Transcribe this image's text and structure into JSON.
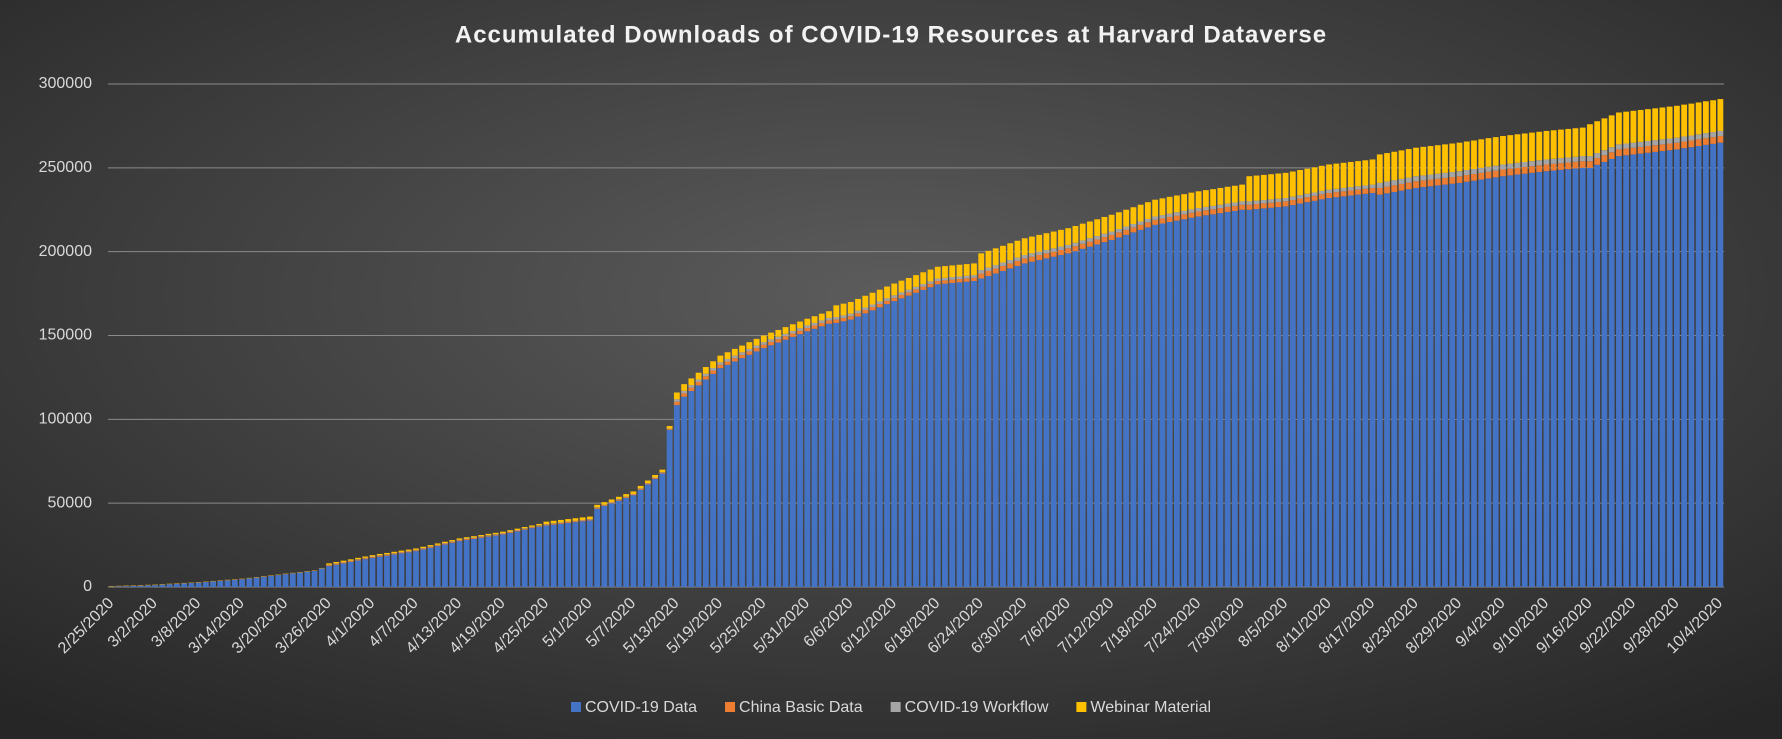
{
  "chart_data": {
    "type": "stacked_bar",
    "title": "Accumulated Downloads of COVID-19 Resources at Harvard Dataverse",
    "categories": [
      "2/25/2020",
      null,
      null,
      null,
      null,
      null,
      "3/2/2020",
      null,
      null,
      null,
      null,
      null,
      "3/8/2020",
      null,
      null,
      null,
      null,
      null,
      "3/14/2020",
      null,
      null,
      null,
      null,
      null,
      "3/20/2020",
      null,
      null,
      null,
      null,
      null,
      "3/26/2020",
      null,
      null,
      null,
      null,
      null,
      "4/1/2020",
      null,
      null,
      null,
      null,
      null,
      "4/7/2020",
      null,
      null,
      null,
      null,
      null,
      "4/13/2020",
      null,
      null,
      null,
      null,
      null,
      "4/19/2020",
      null,
      null,
      null,
      null,
      null,
      "4/25/2020",
      null,
      null,
      null,
      null,
      null,
      "5/1/2020",
      null,
      null,
      null,
      null,
      null,
      "5/7/2020",
      null,
      null,
      null,
      null,
      null,
      "5/13/2020",
      null,
      null,
      null,
      null,
      null,
      "5/19/2020",
      null,
      null,
      null,
      null,
      null,
      "5/25/2020",
      null,
      null,
      null,
      null,
      null,
      "5/31/2020",
      null,
      null,
      null,
      null,
      null,
      "6/6/2020",
      null,
      null,
      null,
      null,
      null,
      "6/12/2020",
      null,
      null,
      null,
      null,
      null,
      "6/18/2020",
      null,
      null,
      null,
      null,
      null,
      "6/24/2020",
      null,
      null,
      null,
      null,
      null,
      "6/30/2020",
      null,
      null,
      null,
      null,
      null,
      "7/6/2020",
      null,
      null,
      null,
      null,
      null,
      "7/12/2020",
      null,
      null,
      null,
      null,
      null,
      "7/18/2020",
      null,
      null,
      null,
      null,
      null,
      "7/24/2020",
      null,
      null,
      null,
      null,
      null,
      "7/30/2020",
      null,
      null,
      null,
      null,
      null,
      "8/5/2020",
      null,
      null,
      null,
      null,
      null,
      "8/11/2020",
      null,
      null,
      null,
      null,
      null,
      "8/17/2020",
      null,
      null,
      null,
      null,
      null,
      "8/23/2020",
      null,
      null,
      null,
      null,
      null,
      "8/29/2020",
      null,
      null,
      null,
      null,
      null,
      "9/4/2020",
      null,
      null,
      null,
      null,
      null,
      "9/10/2020",
      null,
      null,
      null,
      null,
      null,
      "9/16/2020",
      null,
      null,
      null,
      null,
      null,
      "9/22/2020",
      null,
      null,
      null,
      null,
      null,
      "9/28/2020",
      null,
      null,
      null,
      null,
      null,
      "10/4/2020"
    ],
    "series": [
      {
        "name": "COVID-19 Data",
        "color": "#4472c4",
        "values": [
          200,
          350,
          500,
          650,
          800,
          950,
          1100,
          1350,
          1600,
          1850,
          2100,
          2350,
          2600,
          2930,
          3270,
          3600,
          3930,
          4270,
          4600,
          5100,
          5600,
          6100,
          6600,
          7100,
          7600,
          8100,
          8600,
          9100,
          9600,
          11000,
          12500,
          13300,
          14100,
          14900,
          15800,
          16600,
          17400,
          18100,
          18700,
          19400,
          20100,
          20700,
          21400,
          22400,
          23400,
          24400,
          25400,
          26400,
          27400,
          28100,
          28700,
          29400,
          30100,
          30700,
          31400,
          32300,
          33200,
          34200,
          35100,
          36000,
          36700,
          37200,
          37700,
          38200,
          38700,
          39200,
          39700,
          46700,
          48300,
          49900,
          51500,
          53100,
          54700,
          58000,
          61200,
          64500,
          67700,
          93700,
          108500,
          113500,
          116900,
          120300,
          123700,
          127100,
          130500,
          132500,
          134500,
          136500,
          138500,
          140500,
          142500,
          144200,
          145800,
          147500,
          149200,
          150800,
          152500,
          154000,
          155500,
          157000,
          157500,
          158500,
          159500,
          161300,
          163200,
          165000,
          166800,
          168700,
          170500,
          172200,
          173800,
          175500,
          177200,
          178800,
          180500,
          180900,
          181300,
          181700,
          182100,
          182500,
          184000,
          185500,
          187000,
          188500,
          190000,
          191500,
          193000,
          194000,
          195000,
          196000,
          197000,
          198000,
          199000,
          200300,
          201700,
          203000,
          204300,
          205700,
          207000,
          208500,
          210000,
          211500,
          213000,
          214500,
          216000,
          216800,
          217700,
          218500,
          219300,
          220200,
          221000,
          221700,
          222300,
          223000,
          223700,
          224300,
          225000,
          225000,
          225400,
          225800,
          226200,
          226600,
          227000,
          227800,
          228700,
          229500,
          230300,
          231200,
          232000,
          232500,
          233000,
          233500,
          234000,
          234500,
          235000,
          234000,
          234800,
          235600,
          236400,
          237200,
          238000,
          238500,
          239000,
          239500,
          240000,
          240500,
          241000,
          241700,
          242300,
          243000,
          243700,
          244300,
          245000,
          245500,
          246000,
          246500,
          247000,
          247500,
          248000,
          248400,
          248800,
          249200,
          249600,
          250000,
          250000,
          251800,
          253500,
          255300,
          257000,
          257500,
          258000,
          258500,
          259000,
          259500,
          260000,
          260500,
          261000,
          261700,
          262300,
          263000,
          263700,
          264300,
          265000
        ]
      },
      {
        "name": "China Basic Data",
        "color": "#ed7d31",
        "values": [
          100,
          100,
          100,
          100,
          100,
          100,
          100,
          100,
          100,
          100,
          100,
          100,
          100,
          100,
          100,
          100,
          100,
          100,
          100,
          100,
          100,
          100,
          100,
          100,
          100,
          100,
          100,
          100,
          100,
          100,
          500,
          500,
          500,
          500,
          500,
          500,
          500,
          500,
          500,
          500,
          500,
          500,
          500,
          500,
          500,
          500,
          500,
          500,
          500,
          500,
          500,
          500,
          500,
          500,
          500,
          500,
          500,
          500,
          500,
          500,
          500,
          500,
          500,
          500,
          500,
          500,
          500,
          500,
          500,
          500,
          500,
          500,
          500,
          500,
          500,
          500,
          500,
          500,
          2000,
          2000,
          2000,
          2000,
          2000,
          2000,
          2000,
          2000,
          2000,
          2000,
          2000,
          2000,
          2000,
          2000,
          2000,
          2000,
          2000,
          2000,
          2000,
          2000,
          2000,
          2000,
          2000,
          2000,
          2000,
          2000,
          2000,
          2000,
          2000,
          2000,
          2000,
          2000,
          2000,
          2000,
          2000,
          2000,
          2000,
          2000,
          2000,
          2000,
          2000,
          2000,
          3000,
          3000,
          3000,
          3000,
          3000,
          3000,
          3000,
          3000,
          3000,
          3000,
          3000,
          3000,
          3000,
          3000,
          3000,
          3000,
          3000,
          3000,
          3000,
          3000,
          3000,
          3000,
          3000,
          3000,
          3000,
          3000,
          3000,
          3000,
          3000,
          3000,
          3000,
          3000,
          3000,
          3000,
          3000,
          3000,
          3000,
          3000,
          3000,
          3000,
          3000,
          3000,
          3000,
          3000,
          3000,
          3000,
          3000,
          3000,
          3000,
          3000,
          3000,
          3000,
          3000,
          3000,
          3000,
          4000,
          4000,
          4000,
          4000,
          4000,
          4000,
          4000,
          4000,
          4000,
          4000,
          4000,
          4000,
          4000,
          4000,
          4000,
          4000,
          4000,
          4000,
          4000,
          4000,
          4000,
          4000,
          4000,
          4000,
          4000,
          4000,
          4000,
          4000,
          4000,
          4000,
          4000,
          4000,
          4000,
          4000,
          4000,
          4000,
          4000,
          4000,
          4000,
          4000,
          4000,
          4000,
          4000,
          4000,
          4000,
          4000,
          4000,
          4000
        ]
      },
      {
        "name": "COVID-19 Workflow",
        "color": "#a5a5a5",
        "values": [
          50,
          50,
          50,
          50,
          50,
          50,
          50,
          50,
          50,
          50,
          50,
          50,
          50,
          50,
          50,
          50,
          50,
          50,
          50,
          50,
          50,
          50,
          50,
          50,
          50,
          50,
          50,
          50,
          50,
          50,
          300,
          300,
          300,
          300,
          300,
          300,
          300,
          300,
          300,
          300,
          300,
          300,
          300,
          300,
          300,
          300,
          300,
          300,
          300,
          300,
          300,
          300,
          300,
          300,
          300,
          300,
          300,
          300,
          300,
          300,
          300,
          300,
          300,
          300,
          300,
          300,
          300,
          300,
          300,
          300,
          300,
          300,
          300,
          300,
          300,
          300,
          300,
          300,
          1500,
          1500,
          1500,
          1500,
          1500,
          1500,
          1500,
          1500,
          1500,
          1500,
          1500,
          1500,
          1500,
          1500,
          1500,
          1500,
          1500,
          1500,
          1500,
          1500,
          1500,
          1500,
          1500,
          1500,
          1500,
          1500,
          1500,
          1500,
          1500,
          1500,
          1500,
          1500,
          1500,
          1500,
          1500,
          1500,
          1500,
          1500,
          1500,
          1500,
          1500,
          1500,
          2000,
          2000,
          2000,
          2000,
          2000,
          2000,
          2000,
          2000,
          2000,
          2000,
          2000,
          2000,
          2000,
          2000,
          2000,
          2000,
          2000,
          2000,
          2000,
          2000,
          2000,
          2000,
          2000,
          2000,
          2000,
          2000,
          2000,
          2000,
          2000,
          2000,
          2000,
          2000,
          2000,
          2000,
          2000,
          2000,
          2000,
          2000,
          2000,
          2000,
          2000,
          2000,
          2000,
          2000,
          2000,
          2000,
          2000,
          2000,
          2000,
          2000,
          2000,
          2000,
          2000,
          2000,
          2000,
          3000,
          3000,
          3000,
          3000,
          3000,
          3000,
          3000,
          3000,
          3000,
          3000,
          3000,
          3000,
          3000,
          3000,
          3000,
          3000,
          3000,
          3000,
          3000,
          3000,
          3000,
          3000,
          3000,
          3000,
          3000,
          3000,
          3000,
          3000,
          3000,
          3000,
          3000,
          3000,
          3000,
          3000,
          3000,
          3000,
          3000,
          3000,
          3000,
          3000,
          3000,
          3000,
          3000,
          3000,
          3000,
          3000,
          3000,
          3000
        ]
      },
      {
        "name": "Webinar Material",
        "color": "#ffc000",
        "values": [
          200,
          200,
          200,
          200,
          200,
          200,
          200,
          200,
          200,
          200,
          200,
          200,
          200,
          200,
          200,
          200,
          200,
          200,
          200,
          200,
          200,
          200,
          200,
          200,
          200,
          200,
          200,
          200,
          200,
          200,
          800,
          800,
          800,
          800,
          800,
          800,
          800,
          800,
          800,
          800,
          800,
          800,
          800,
          800,
          800,
          800,
          800,
          800,
          800,
          800,
          800,
          800,
          800,
          800,
          800,
          800,
          800,
          800,
          800,
          800,
          1500,
          1500,
          1500,
          1500,
          1500,
          1500,
          1500,
          1500,
          1500,
          1500,
          1500,
          1500,
          1500,
          1500,
          1500,
          1500,
          1500,
          1500,
          4000,
          4000,
          4000,
          4000,
          4000,
          4000,
          4000,
          4000,
          4000,
          4000,
          4000,
          4000,
          4000,
          4000,
          4000,
          4000,
          4000,
          4000,
          4000,
          4000,
          4000,
          4000,
          7000,
          7000,
          7000,
          7000,
          7000,
          7000,
          7000,
          7000,
          7000,
          7000,
          7000,
          7000,
          7000,
          7000,
          7000,
          7000,
          7000,
          7000,
          7000,
          7000,
          10000,
          10000,
          10000,
          10000,
          10000,
          10000,
          10000,
          10000,
          10000,
          10000,
          10000,
          10000,
          10000,
          10000,
          10000,
          10000,
          10000,
          10000,
          10000,
          10000,
          10000,
          10000,
          10000,
          10000,
          10000,
          10000,
          10000,
          10000,
          10000,
          10000,
          10000,
          10000,
          10000,
          10000,
          10000,
          10000,
          10000,
          15000,
          15000,
          15000,
          15000,
          15000,
          15000,
          15000,
          15000,
          15000,
          15000,
          15000,
          15000,
          15000,
          15000,
          15000,
          15000,
          15000,
          15000,
          17000,
          17000,
          17000,
          17000,
          17000,
          17000,
          17000,
          17000,
          17000,
          17000,
          17000,
          17000,
          17000,
          17000,
          17000,
          17000,
          17000,
          17000,
          17000,
          17000,
          17000,
          17000,
          17000,
          17000,
          17000,
          17000,
          17000,
          17000,
          17000,
          19000,
          19000,
          19000,
          19000,
          19000,
          19000,
          19000,
          19000,
          19000,
          19000,
          19000,
          19000,
          19000,
          19000,
          19000,
          19000,
          19000,
          19000,
          19000
        ]
      }
    ],
    "ylim": [
      0,
      300000
    ],
    "yticks": [
      0,
      50000,
      100000,
      150000,
      200000,
      250000,
      300000
    ],
    "grid": true,
    "legend": "bottom"
  }
}
